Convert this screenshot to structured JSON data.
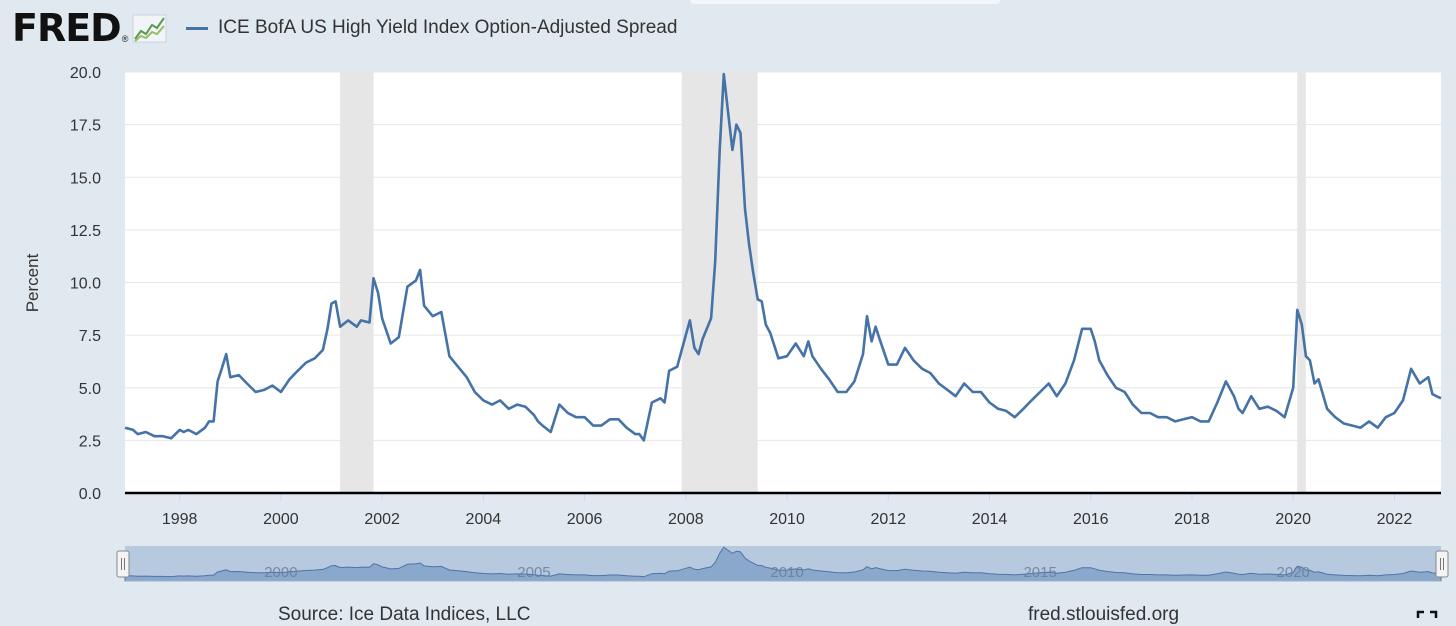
{
  "header": {
    "logo_text": "FRED",
    "logo_reg": "®",
    "legend_label": "ICE BofA US High Yield Index Option-Adjusted Spread"
  },
  "footer": {
    "source": "Source: Ice Data Indices, LLC",
    "site": "fred.stlouisfed.org"
  },
  "navigator": {
    "tick_labels": [
      "2000",
      "2005",
      "2010",
      "2015",
      "2020"
    ]
  },
  "colors": {
    "series": "#4572a7",
    "recession": "#e6e6e6",
    "navigator_fill": "#a8bfdc"
  },
  "chart_data": {
    "type": "line",
    "ylabel": "Percent",
    "xlabel": "",
    "xlim": [
      1996.92,
      2022.92
    ],
    "ylim": [
      0,
      20
    ],
    "yticks": [
      "0.0",
      "2.5",
      "5.0",
      "7.5",
      "10.0",
      "12.5",
      "15.0",
      "17.5",
      "20.0"
    ],
    "xticks": [
      "1998",
      "2000",
      "2002",
      "2004",
      "2006",
      "2008",
      "2010",
      "2012",
      "2014",
      "2016",
      "2018",
      "2020",
      "2022"
    ],
    "grid": true,
    "recessions": [
      [
        2001.17,
        2001.83
      ],
      [
        2007.92,
        2009.42
      ],
      [
        2020.08,
        2020.25
      ]
    ],
    "series": [
      {
        "name": "ICE BofA US High Yield Index Option-Adjusted Spread",
        "x": [
          1996.92,
          1997.08,
          1997.17,
          1997.33,
          1997.5,
          1997.67,
          1997.83,
          1998.0,
          1998.08,
          1998.17,
          1998.33,
          1998.5,
          1998.58,
          1998.67,
          1998.75,
          1998.83,
          1998.92,
          1999.0,
          1999.17,
          1999.33,
          1999.5,
          1999.67,
          1999.83,
          2000.0,
          2000.17,
          2000.33,
          2000.5,
          2000.67,
          2000.83,
          2000.92,
          2001.0,
          2001.08,
          2001.17,
          2001.33,
          2001.5,
          2001.58,
          2001.75,
          2001.83,
          2001.92,
          2002.0,
          2002.17,
          2002.33,
          2002.5,
          2002.67,
          2002.75,
          2002.83,
          2003.0,
          2003.17,
          2003.33,
          2003.5,
          2003.67,
          2003.83,
          2004.0,
          2004.17,
          2004.33,
          2004.5,
          2004.67,
          2004.83,
          2005.0,
          2005.08,
          2005.17,
          2005.33,
          2005.5,
          2005.67,
          2005.83,
          2006.0,
          2006.17,
          2006.33,
          2006.5,
          2006.67,
          2006.83,
          2007.0,
          2007.08,
          2007.17,
          2007.33,
          2007.5,
          2007.58,
          2007.67,
          2007.83,
          2008.0,
          2008.08,
          2008.17,
          2008.25,
          2008.33,
          2008.5,
          2008.58,
          2008.67,
          2008.75,
          2008.83,
          2008.92,
          2009.0,
          2009.08,
          2009.17,
          2009.25,
          2009.33,
          2009.42,
          2009.5,
          2009.58,
          2009.67,
          2009.83,
          2010.0,
          2010.17,
          2010.33,
          2010.42,
          2010.5,
          2010.67,
          2010.83,
          2011.0,
          2011.17,
          2011.33,
          2011.5,
          2011.58,
          2011.67,
          2011.75,
          2011.83,
          2012.0,
          2012.17,
          2012.33,
          2012.5,
          2012.67,
          2012.83,
          2013.0,
          2013.17,
          2013.33,
          2013.5,
          2013.67,
          2013.83,
          2014.0,
          2014.17,
          2014.33,
          2014.5,
          2014.67,
          2014.83,
          2015.0,
          2015.17,
          2015.33,
          2015.5,
          2015.67,
          2015.83,
          2016.0,
          2016.08,
          2016.17,
          2016.33,
          2016.5,
          2016.67,
          2016.83,
          2017.0,
          2017.17,
          2017.33,
          2017.5,
          2017.67,
          2017.83,
          2018.0,
          2018.17,
          2018.33,
          2018.5,
          2018.67,
          2018.83,
          2018.92,
          2019.0,
          2019.17,
          2019.33,
          2019.5,
          2019.67,
          2019.83,
          2020.0,
          2020.08,
          2020.17,
          2020.25,
          2020.33,
          2020.42,
          2020.5,
          2020.67,
          2020.83,
          2021.0,
          2021.17,
          2021.33,
          2021.5,
          2021.67,
          2021.83,
          2022.0,
          2022.17,
          2022.33,
          2022.5,
          2022.67,
          2022.75,
          2022.83,
          2022.92
        ],
        "values": [
          3.1,
          3.0,
          2.8,
          2.9,
          2.7,
          2.7,
          2.6,
          3.0,
          2.9,
          3.0,
          2.8,
          3.1,
          3.4,
          3.4,
          5.3,
          5.9,
          6.6,
          5.5,
          5.6,
          5.2,
          4.8,
          4.9,
          5.1,
          4.8,
          5.4,
          5.8,
          6.2,
          6.4,
          6.8,
          7.8,
          9.0,
          9.1,
          7.9,
          8.2,
          7.9,
          8.2,
          8.1,
          10.2,
          9.5,
          8.3,
          7.1,
          7.4,
          9.8,
          10.1,
          10.6,
          8.9,
          8.4,
          8.6,
          6.5,
          6.0,
          5.5,
          4.8,
          4.4,
          4.2,
          4.4,
          4.0,
          4.2,
          4.1,
          3.7,
          3.4,
          3.2,
          2.9,
          4.2,
          3.8,
          3.6,
          3.6,
          3.2,
          3.2,
          3.5,
          3.5,
          3.1,
          2.8,
          2.8,
          2.5,
          4.3,
          4.5,
          4.3,
          5.8,
          6.0,
          7.5,
          8.2,
          6.9,
          6.6,
          7.3,
          8.3,
          11.0,
          16.3,
          19.9,
          18.2,
          16.3,
          17.5,
          17.1,
          13.5,
          11.8,
          10.5,
          9.2,
          9.1,
          8.0,
          7.6,
          6.4,
          6.5,
          7.1,
          6.5,
          7.2,
          6.5,
          5.9,
          5.4,
          4.8,
          4.8,
          5.3,
          6.6,
          8.4,
          7.2,
          7.9,
          7.3,
          6.1,
          6.1,
          6.9,
          6.3,
          5.9,
          5.7,
          5.2,
          4.9,
          4.6,
          5.2,
          4.8,
          4.8,
          4.3,
          4.0,
          3.9,
          3.6,
          4.0,
          4.4,
          4.8,
          5.2,
          4.6,
          5.2,
          6.3,
          7.8,
          7.8,
          7.2,
          6.3,
          5.6,
          5.0,
          4.8,
          4.2,
          3.8,
          3.8,
          3.6,
          3.6,
          3.4,
          3.5,
          3.6,
          3.4,
          3.4,
          4.3,
          5.3,
          4.6,
          4.0,
          3.8,
          4.6,
          4.0,
          4.1,
          3.9,
          3.6,
          5.0,
          8.7,
          8.0,
          6.5,
          6.3,
          5.2,
          5.4,
          4.0,
          3.6,
          3.3,
          3.2,
          3.1,
          3.4,
          3.1,
          3.6,
          3.8,
          4.4,
          5.9,
          5.2,
          5.5,
          4.7,
          4.6,
          4.5
        ]
      }
    ]
  }
}
